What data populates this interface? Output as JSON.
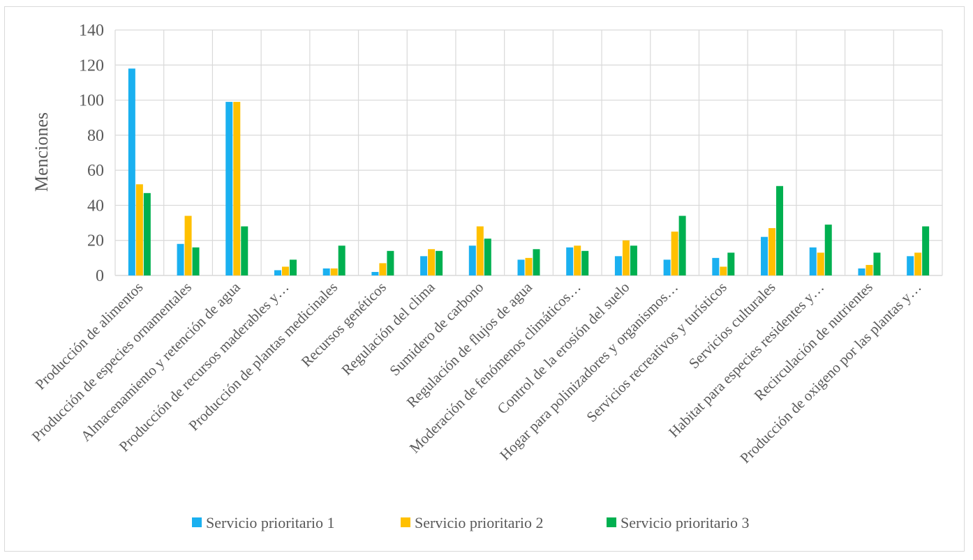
{
  "chart_data": {
    "type": "bar",
    "title": "",
    "xlabel": "",
    "ylabel": "Menciones",
    "ylim": [
      0,
      140
    ],
    "yticks": [
      0,
      20,
      40,
      60,
      80,
      100,
      120,
      140
    ],
    "grid": true,
    "legend_position": "bottom",
    "categories": [
      "Producción de alimentos",
      "Producción de especies ornamentales",
      "Almacenamiento y retención de agua",
      "Producción de recursos maderables y…",
      "Producción de plantas medicinales",
      "Recursos genéticos",
      "Regulación del clima",
      "Sumidero de carbono",
      "Regulación de flujos de agua",
      "Moderación de fenómenos climáticos…",
      "Control de la erosión del suelo",
      "Hogar para polinizadores y organismos…",
      "Servicios recreativos y turísticos",
      "Servicios culturales",
      "Habitat para especies residentes y…",
      "Recirculación de nutrientes",
      "Producción de oxigeno por las plantas y…"
    ],
    "series": [
      {
        "name": "Servicio prioritario 1",
        "color": "#1ab0f0",
        "values": [
          118,
          18,
          99,
          3,
          4,
          2,
          11,
          17,
          9,
          16,
          11,
          9,
          10,
          22,
          16,
          4,
          11
        ]
      },
      {
        "name": "Servicio prioritario 2",
        "color": "#ffc000",
        "values": [
          52,
          34,
          99,
          5,
          4,
          7,
          15,
          28,
          10,
          17,
          20,
          25,
          5,
          27,
          13,
          6,
          13
        ]
      },
      {
        "name": "Servicio prioritario 3",
        "color": "#00b050",
        "values": [
          47,
          16,
          28,
          9,
          17,
          14,
          14,
          21,
          15,
          14,
          17,
          34,
          13,
          51,
          29,
          13,
          28
        ]
      }
    ]
  }
}
